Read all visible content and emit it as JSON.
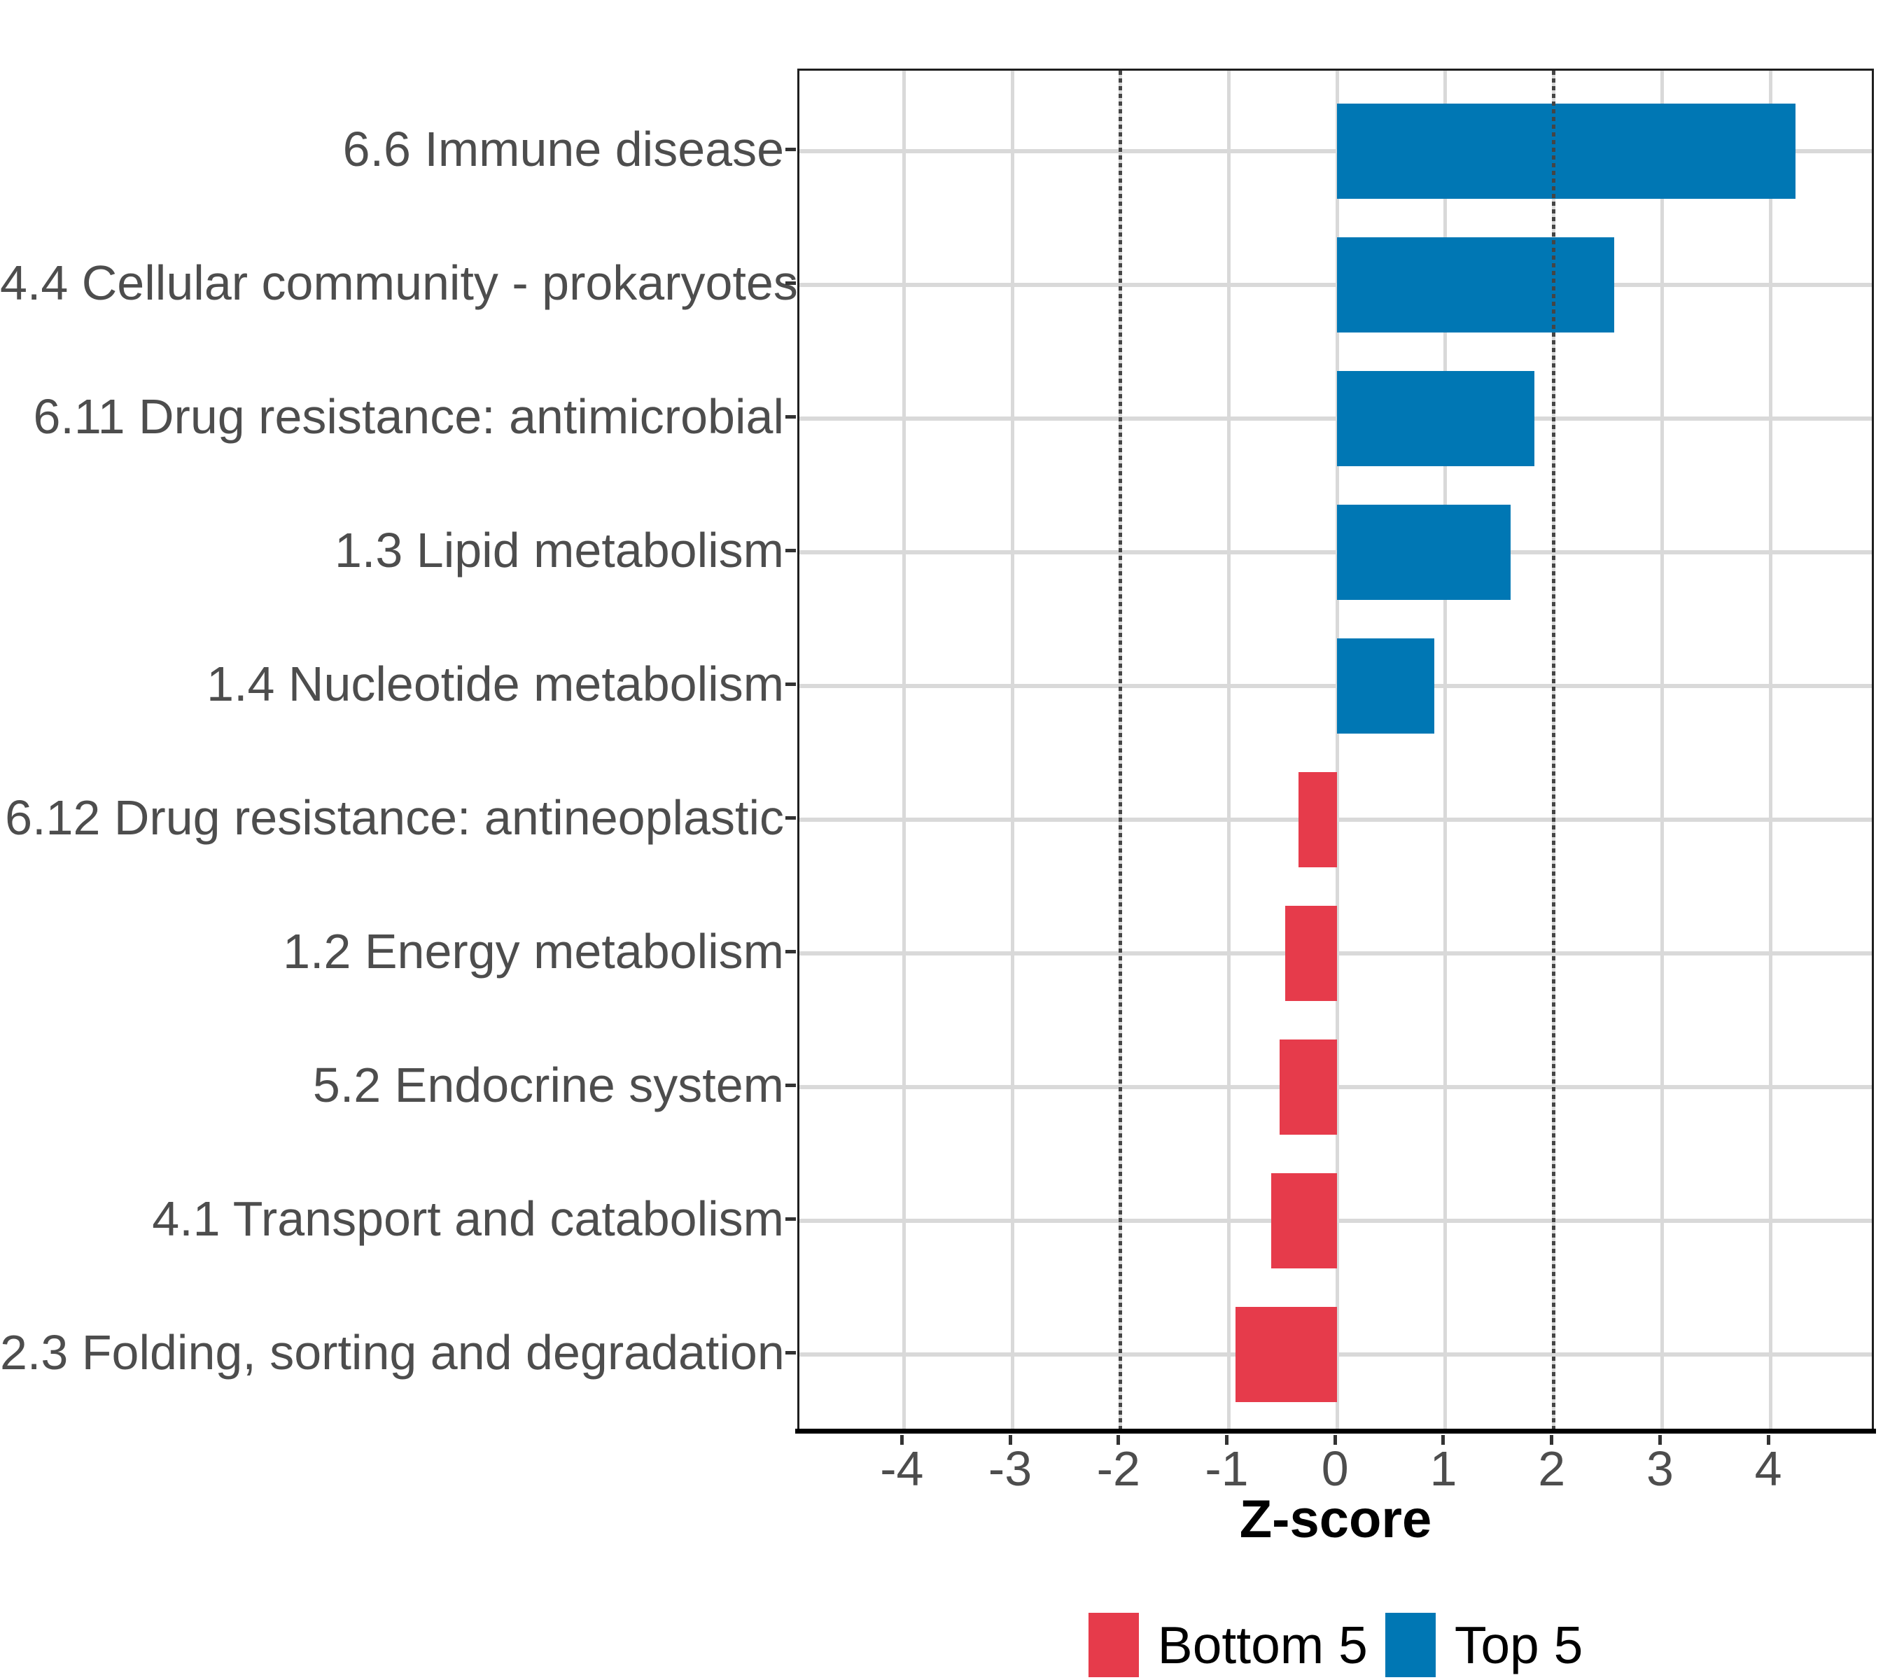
{
  "chart_data": {
    "type": "bar",
    "orientation": "horizontal",
    "title": "",
    "xlabel": "Z-score",
    "ylabel": "",
    "categories": [
      "6.6 Immune disease",
      "4.4 Cellular community - prokaryotes",
      "6.11 Drug resistance: antimicrobial",
      "1.3 Lipid metabolism",
      "1.4 Nucleotide metabolism",
      "6.12 Drug resistance: antineoplastic",
      "1.2 Energy metabolism",
      "5.2 Endocrine system",
      "4.1 Transport and catabolism",
      "2.3 Folding, sorting and degradation"
    ],
    "values": [
      4.23,
      2.56,
      1.82,
      1.6,
      0.9,
      -0.36,
      -0.48,
      -0.53,
      -0.61,
      -0.94
    ],
    "groups": [
      "Top 5",
      "Top 5",
      "Top 5",
      "Top 5",
      "Top 5",
      "Bottom 5",
      "Bottom 5",
      "Bottom 5",
      "Bottom 5",
      "Bottom 5"
    ],
    "x_ticks": [
      "-4",
      "-3",
      "-2",
      "-1",
      "0",
      "1",
      "2",
      "3",
      "4"
    ],
    "x_tick_values": [
      -4,
      -3,
      -2,
      -1,
      0,
      1,
      2,
      3,
      4
    ],
    "xlim": [
      -4.965,
      4.975
    ],
    "reference_lines": [
      -2,
      2
    ],
    "grid": "major-only",
    "legend_position": "bottom-center",
    "legend": [
      {
        "label": "Bottom 5",
        "color": "#e63b4b"
      },
      {
        "label": "Top 5",
        "color": "#0077b4"
      }
    ],
    "colors": {
      "top5_bar": "#0077b4",
      "bottom5_bar": "#e63b4b",
      "gridline": "#d9d9d9",
      "reference_line": "#454545",
      "axis_text": "#4d4d4d",
      "axis_title_text": "#000000",
      "panel_border": "#1f1f1f",
      "background": "#ffffff"
    }
  }
}
